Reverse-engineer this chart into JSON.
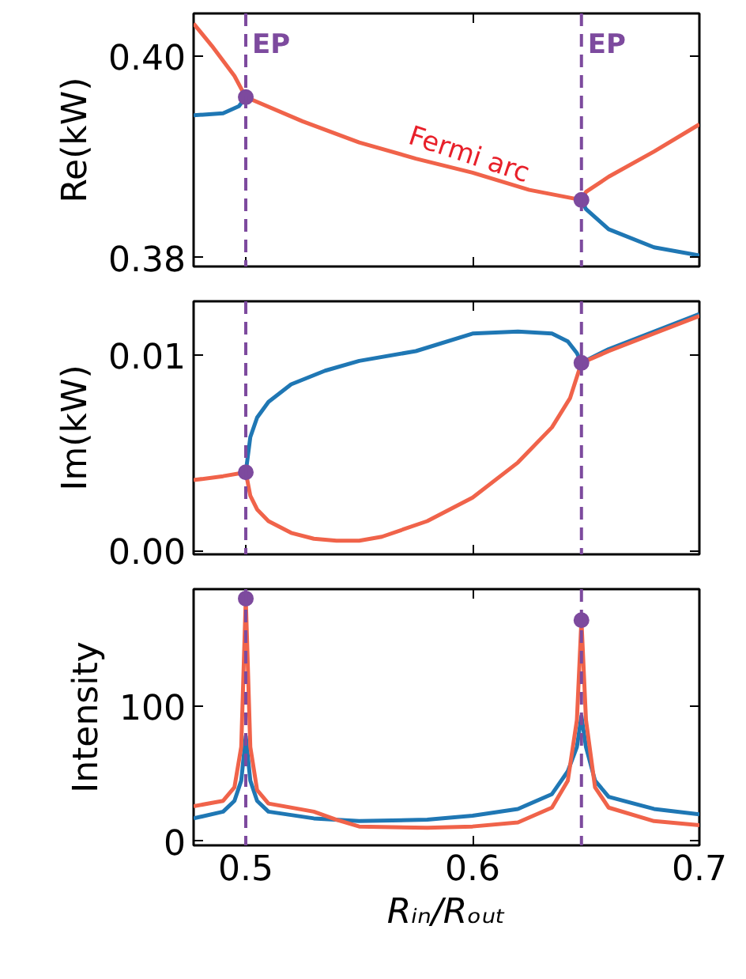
{
  "chart_data": [
    {
      "type": "line",
      "ylabel": "Re(kW)",
      "xlim": [
        0.477,
        0.7
      ],
      "ylim": [
        0.3791,
        0.4042
      ],
      "xticks": [
        0.5,
        0.6,
        0.7
      ],
      "yticks": [
        {
          "value": 0.38,
          "label": "0.38"
        },
        {
          "value": 0.4,
          "label": "0.40"
        }
      ],
      "tick_labels": "y",
      "grid": false,
      "line_style": "solid",
      "series": [
        {
          "color": "#f0634a",
          "x": [
            0.477,
            0.485,
            0.495,
            0.5
          ],
          "values": [
            0.4032,
            0.401,
            0.398,
            0.3959
          ]
        },
        {
          "color": "#1f77b4",
          "x": [
            0.477,
            0.49,
            0.497,
            0.5
          ],
          "values": [
            0.3941,
            0.3943,
            0.395,
            0.3959
          ]
        },
        {
          "color": "#f0634a",
          "x": [
            0.5,
            0.525,
            0.55,
            0.575,
            0.6,
            0.625,
            0.648
          ],
          "values": [
            0.3959,
            0.3935,
            0.3914,
            0.3898,
            0.3884,
            0.3867,
            0.3857
          ]
        },
        {
          "color": "#f0634a",
          "x": [
            0.648,
            0.65,
            0.66,
            0.68,
            0.7
          ],
          "values": [
            0.3857,
            0.3865,
            0.388,
            0.3905,
            0.3932
          ]
        },
        {
          "color": "#1f77b4",
          "x": [
            0.648,
            0.65,
            0.66,
            0.68,
            0.7
          ],
          "values": [
            0.3857,
            0.3848,
            0.3828,
            0.381,
            0.3802
          ]
        },
        {
          "type": "scatter",
          "marker": "circle",
          "color": "#7d4a9e",
          "x": [
            0.5,
            0.648
          ],
          "values": [
            0.3959,
            0.3857
          ]
        }
      ],
      "ref_lines": [
        {
          "axis": "x",
          "value": 0.5,
          "label": "EP",
          "color": "#7d4a9e",
          "line_style": "dashed"
        },
        {
          "axis": "x",
          "value": 0.648,
          "label": "EP",
          "color": "#7d4a9e",
          "line_style": "dashed"
        }
      ],
      "annotations": [
        {
          "text": "Fermi arc",
          "x": 0.57,
          "y": 0.3906
        }
      ]
    },
    {
      "type": "line",
      "ylabel": "Im(kW)",
      "xlim": [
        0.477,
        0.7
      ],
      "ylim": [
        -0.0002,
        0.01275
      ],
      "xticks": [
        0.5,
        0.6,
        0.7
      ],
      "yticks": [
        {
          "value": 0.0,
          "label": "0.00"
        },
        {
          "value": 0.01,
          "label": "0.01"
        }
      ],
      "tick_labels": "y",
      "grid": false,
      "line_style": "solid",
      "series": [
        {
          "color": "#f0634a",
          "x": [
            0.477,
            0.49,
            0.5
          ],
          "values": [
            0.0036,
            0.0038,
            0.004
          ]
        },
        {
          "color": "#1f77b4",
          "x": [
            0.5,
            0.502,
            0.505,
            0.51,
            0.52,
            0.535,
            0.55,
            0.575,
            0.6,
            0.62,
            0.635,
            0.642,
            0.646,
            0.648
          ],
          "values": [
            0.004,
            0.0058,
            0.0068,
            0.0076,
            0.0085,
            0.0092,
            0.0097,
            0.0102,
            0.0111,
            0.0112,
            0.0111,
            0.0107,
            0.0101,
            0.0096
          ]
        },
        {
          "color": "#f0634a",
          "x": [
            0.5,
            0.502,
            0.505,
            0.51,
            0.52,
            0.53,
            0.54,
            0.55,
            0.56,
            0.58,
            0.6,
            0.62,
            0.635,
            0.643,
            0.648
          ],
          "values": [
            0.004,
            0.0028,
            0.0021,
            0.0015,
            0.0009,
            0.0006,
            0.0005,
            0.0005,
            0.0007,
            0.0015,
            0.0027,
            0.0045,
            0.0063,
            0.0078,
            0.0096
          ]
        },
        {
          "color": "#1f77b4",
          "x": [
            0.648,
            0.66,
            0.68,
            0.7
          ],
          "values": [
            0.0096,
            0.0103,
            0.0112,
            0.0121
          ]
        },
        {
          "color": "#f0634a",
          "x": [
            0.648,
            0.66,
            0.68,
            0.7
          ],
          "values": [
            0.0096,
            0.0102,
            0.0111,
            0.012
          ]
        },
        {
          "type": "scatter",
          "marker": "circle",
          "color": "#7d4a9e",
          "x": [
            0.5,
            0.648
          ],
          "values": [
            0.004,
            0.0096
          ]
        }
      ],
      "ref_lines": [
        {
          "axis": "x",
          "value": 0.5,
          "color": "#7d4a9e",
          "line_style": "dashed"
        },
        {
          "axis": "x",
          "value": 0.648,
          "color": "#7d4a9e",
          "line_style": "dashed"
        }
      ]
    },
    {
      "type": "line",
      "ylabel": "Intensity",
      "xlabel": "Rᵢₙ/Rₒᵤₜ",
      "xlim": [
        0.477,
        0.7
      ],
      "ylim": [
        -3,
        187
      ],
      "xticks": [
        0.5,
        0.6,
        0.7
      ],
      "yticks": [
        0,
        100
      ],
      "grid": false,
      "line_style": "solid",
      "series": [
        {
          "color": "#1f77b4",
          "x": [
            0.477,
            0.49,
            0.495,
            0.498,
            0.5,
            0.502,
            0.505,
            0.51,
            0.53,
            0.55,
            0.58,
            0.6,
            0.62,
            0.635,
            0.642,
            0.646,
            0.648,
            0.65,
            0.654,
            0.66,
            0.68,
            0.7
          ],
          "values": [
            17,
            22,
            30,
            45,
            78,
            45,
            30,
            22,
            17,
            15,
            16,
            19,
            24,
            35,
            52,
            70,
            93,
            70,
            45,
            33,
            24,
            20
          ]
        },
        {
          "color": "#f0634a",
          "x": [
            0.477,
            0.49,
            0.495,
            0.498,
            0.5,
            0.502,
            0.505,
            0.51,
            0.53,
            0.54,
            0.55,
            0.58,
            0.6,
            0.62,
            0.635,
            0.642,
            0.646,
            0.648,
            0.65,
            0.654,
            0.66,
            0.68,
            0.7
          ],
          "values": [
            26,
            30,
            40,
            70,
            180,
            70,
            38,
            28,
            22,
            16,
            11,
            10,
            11,
            14,
            25,
            45,
            90,
            164,
            90,
            40,
            25,
            15,
            12
          ]
        },
        {
          "type": "scatter",
          "marker": "circle",
          "color": "#7d4a9e",
          "x": [
            0.5,
            0.648
          ],
          "values": [
            180,
            164
          ]
        }
      ],
      "ref_lines": [
        {
          "axis": "x",
          "value": 0.5,
          "color": "#7d4a9e",
          "line_style": "dashed"
        },
        {
          "axis": "x",
          "value": 0.648,
          "color": "#7d4a9e",
          "line_style": "dashed"
        }
      ]
    }
  ]
}
